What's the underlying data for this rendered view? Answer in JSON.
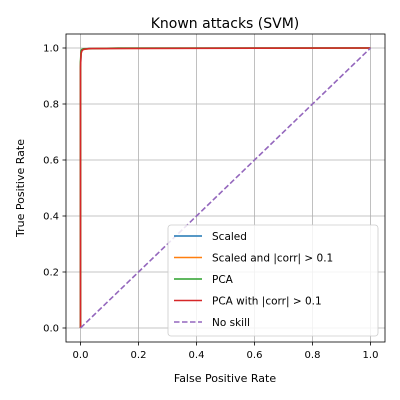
{
  "chart_data": {
    "type": "line",
    "title": "Known attacks (SVM)",
    "xlabel": "False Positive Rate",
    "ylabel": "True Positive Rate",
    "xlim": [
      -0.05,
      1.05
    ],
    "ylim": [
      -0.05,
      1.05
    ],
    "xticks": [
      "0.0",
      "0.2",
      "0.4",
      "0.6",
      "0.8",
      "1.0"
    ],
    "yticks": [
      "0.0",
      "0.2",
      "0.4",
      "0.6",
      "0.8",
      "1.0"
    ],
    "grid": true,
    "legend_position": "lower-right",
    "series": [
      {
        "name": "Scaled",
        "color": "#1f77b4",
        "style": "solid",
        "x": [
          0.0,
          0.0,
          0.002,
          0.005,
          0.01,
          0.03,
          0.1,
          1.0
        ],
        "y": [
          0.0,
          0.93,
          0.985,
          0.993,
          0.996,
          0.998,
          0.999,
          1.0
        ]
      },
      {
        "name": "Scaled and |corr| > 0.1",
        "color": "#ff7f0e",
        "style": "solid",
        "x": [
          0.0,
          0.0,
          0.002,
          0.005,
          0.01,
          0.05,
          0.13,
          1.0
        ],
        "y": [
          0.0,
          0.94,
          0.987,
          0.994,
          0.996,
          0.998,
          0.999,
          1.0
        ]
      },
      {
        "name": "PCA",
        "color": "#2ca02c",
        "style": "solid",
        "x": [
          0.0,
          0.0,
          0.002,
          0.005,
          0.01,
          0.05,
          0.13,
          1.0
        ],
        "y": [
          0.0,
          0.95,
          0.99,
          0.995,
          0.997,
          0.998,
          1.0,
          1.0
        ]
      },
      {
        "name": "PCA with |corr| > 0.1",
        "color": "#d62728",
        "style": "solid",
        "x": [
          0.0,
          0.0,
          0.002,
          0.005,
          0.01,
          0.03,
          1.0
        ],
        "y": [
          0.0,
          0.93,
          0.98,
          0.99,
          0.995,
          0.998,
          1.0
        ]
      },
      {
        "name": "No skill",
        "color": "#9467bd",
        "style": "dashed",
        "x": [
          0.0,
          1.0
        ],
        "y": [
          0.0,
          1.0
        ]
      }
    ]
  }
}
